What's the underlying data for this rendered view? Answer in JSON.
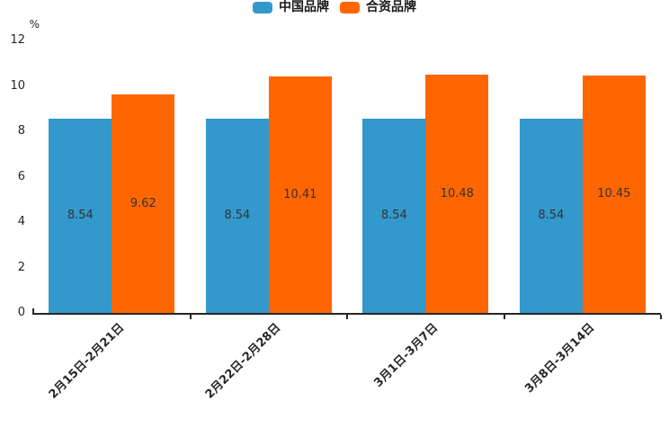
{
  "chart_data": {
    "type": "bar",
    "categories": [
      "2月15日-2月21日",
      "2月22日-2月28日",
      "3月1日-3月7日",
      "3月8日-3月14日"
    ],
    "series": [
      {
        "name": "中国品牌",
        "color": "#3398cc",
        "values": [
          8.54,
          8.54,
          8.54,
          8.54
        ]
      },
      {
        "name": "合资品牌",
        "color": "#ff6600",
        "values": [
          9.62,
          10.41,
          10.48,
          10.45
        ]
      }
    ],
    "ylabel": "%",
    "yticks": [
      0,
      2,
      4,
      6,
      8,
      10,
      12
    ],
    "ylim": [
      0,
      12
    ],
    "grid": false,
    "legend_position": "top-center",
    "value_labels": true,
    "value_label_position": "center-of-bar",
    "xtick_rotation_deg": 45
  }
}
